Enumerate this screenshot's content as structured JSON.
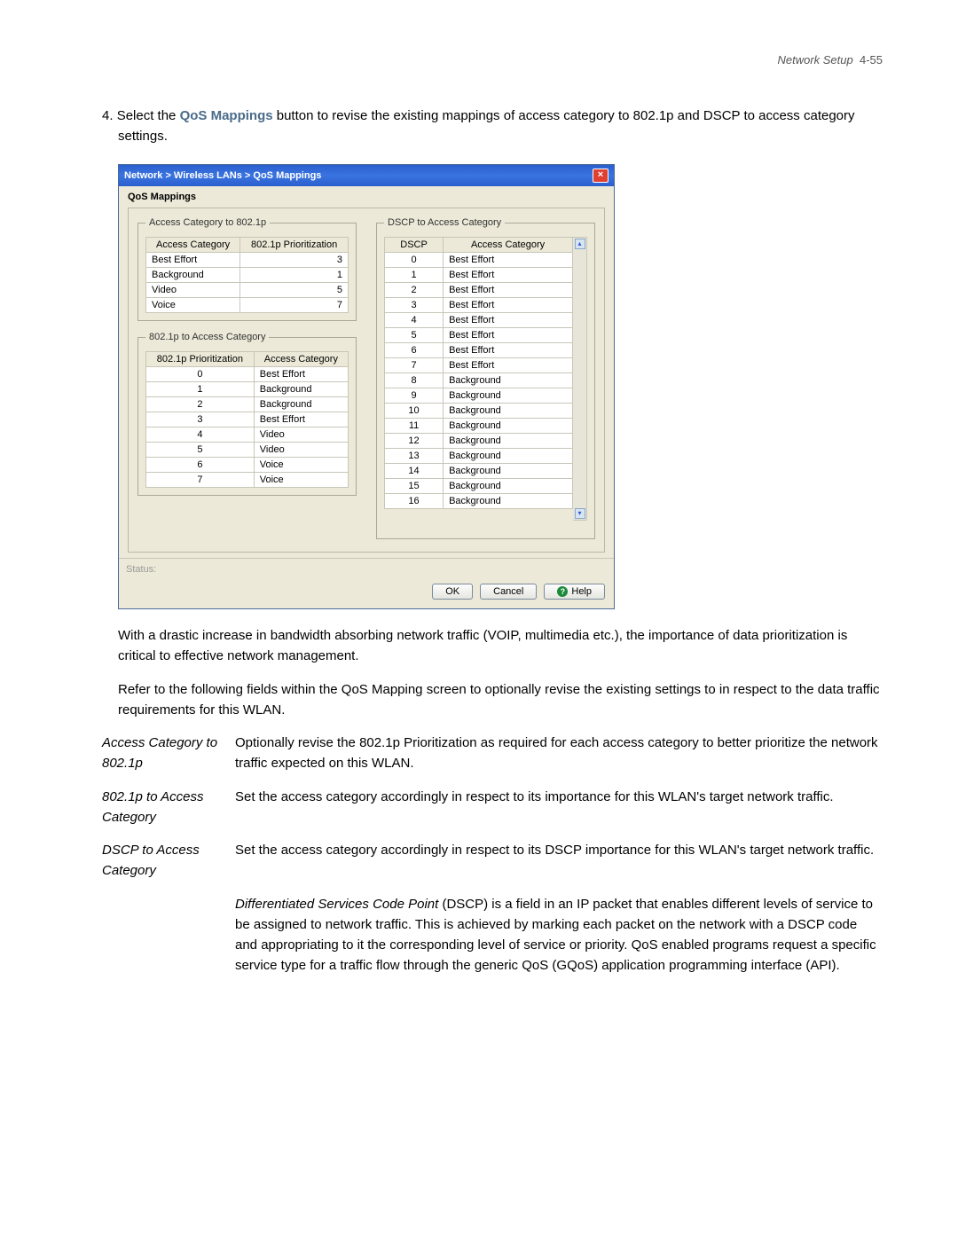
{
  "page_header": {
    "section": "Network Setup",
    "page": "4-55"
  },
  "instruction": {
    "num": "4.",
    "pre": "Select the ",
    "link": "QoS Mappings",
    "post": " button to revise the existing mappings of access category to 802.1p and DSCP to access category settings."
  },
  "dialog": {
    "breadcrumb": "Network > Wireless LANs > QoS Mappings",
    "section_label": "QoS Mappings",
    "group1": {
      "legend": "Access Category to 802.1p",
      "cols": [
        "Access Category",
        "802.1p Prioritization"
      ],
      "rows": [
        [
          "Best Effort",
          "3"
        ],
        [
          "Background",
          "1"
        ],
        [
          "Video",
          "5"
        ],
        [
          "Voice",
          "7"
        ]
      ]
    },
    "group2": {
      "legend": "802.1p to Access Category",
      "cols": [
        "802.1p Prioritization",
        "Access Category"
      ],
      "rows": [
        [
          "0",
          "Best Effort"
        ],
        [
          "1",
          "Background"
        ],
        [
          "2",
          "Background"
        ],
        [
          "3",
          "Best Effort"
        ],
        [
          "4",
          "Video"
        ],
        [
          "5",
          "Video"
        ],
        [
          "6",
          "Voice"
        ],
        [
          "7",
          "Voice"
        ]
      ]
    },
    "group3": {
      "legend": "DSCP to Access Category",
      "cols": [
        "DSCP",
        "Access Category"
      ],
      "rows": [
        [
          "0",
          "Best Effort"
        ],
        [
          "1",
          "Best Effort"
        ],
        [
          "2",
          "Best Effort"
        ],
        [
          "3",
          "Best Effort"
        ],
        [
          "4",
          "Best Effort"
        ],
        [
          "5",
          "Best Effort"
        ],
        [
          "6",
          "Best Effort"
        ],
        [
          "7",
          "Best Effort"
        ],
        [
          "8",
          "Background"
        ],
        [
          "9",
          "Background"
        ],
        [
          "10",
          "Background"
        ],
        [
          "11",
          "Background"
        ],
        [
          "12",
          "Background"
        ],
        [
          "13",
          "Background"
        ],
        [
          "14",
          "Background"
        ],
        [
          "15",
          "Background"
        ],
        [
          "16",
          "Background"
        ]
      ]
    },
    "status_label": "Status:",
    "buttons": {
      "ok": "OK",
      "cancel": "Cancel",
      "help": "Help"
    },
    "colors": {
      "titlebar_bg": "#2a5fce",
      "panel_bg": "#ece9d8",
      "border": "#c8c6b8",
      "close_bg": "#e04030"
    }
  },
  "para1": "With a drastic increase in bandwidth absorbing network traffic (VOIP, multimedia etc.), the importance of data prioritization is critical to effective network management.",
  "para2": "Refer to the following fields within the QoS Mapping screen to optionally revise the existing settings to in respect to the data traffic requirements for this WLAN.",
  "defs": [
    {
      "term": "Access Category to 802.1p",
      "desc": "Optionally revise the 802.1p Prioritization as required for each access category to better prioritize the network traffic expected on this WLAN."
    },
    {
      "term": "802.1p to Access Category",
      "desc": "Set the access category accordingly in respect to its importance for this WLAN's target network traffic."
    },
    {
      "term": "DSCP to Access Category",
      "desc": "Set the access category accordingly in respect to its DSCP importance for this WLAN's target network traffic."
    }
  ],
  "note": {
    "lead": "Differentiated Services Code Point",
    "rest": " (DSCP) is a field in an IP packet that enables different levels of service to be assigned to network traffic. This is achieved by marking each packet on the network with a DSCP code and appropriating to it the corresponding level of service or priority. QoS enabled programs request a specific service type for a traffic flow through the generic QoS (GQoS) application programming interface (API)."
  }
}
